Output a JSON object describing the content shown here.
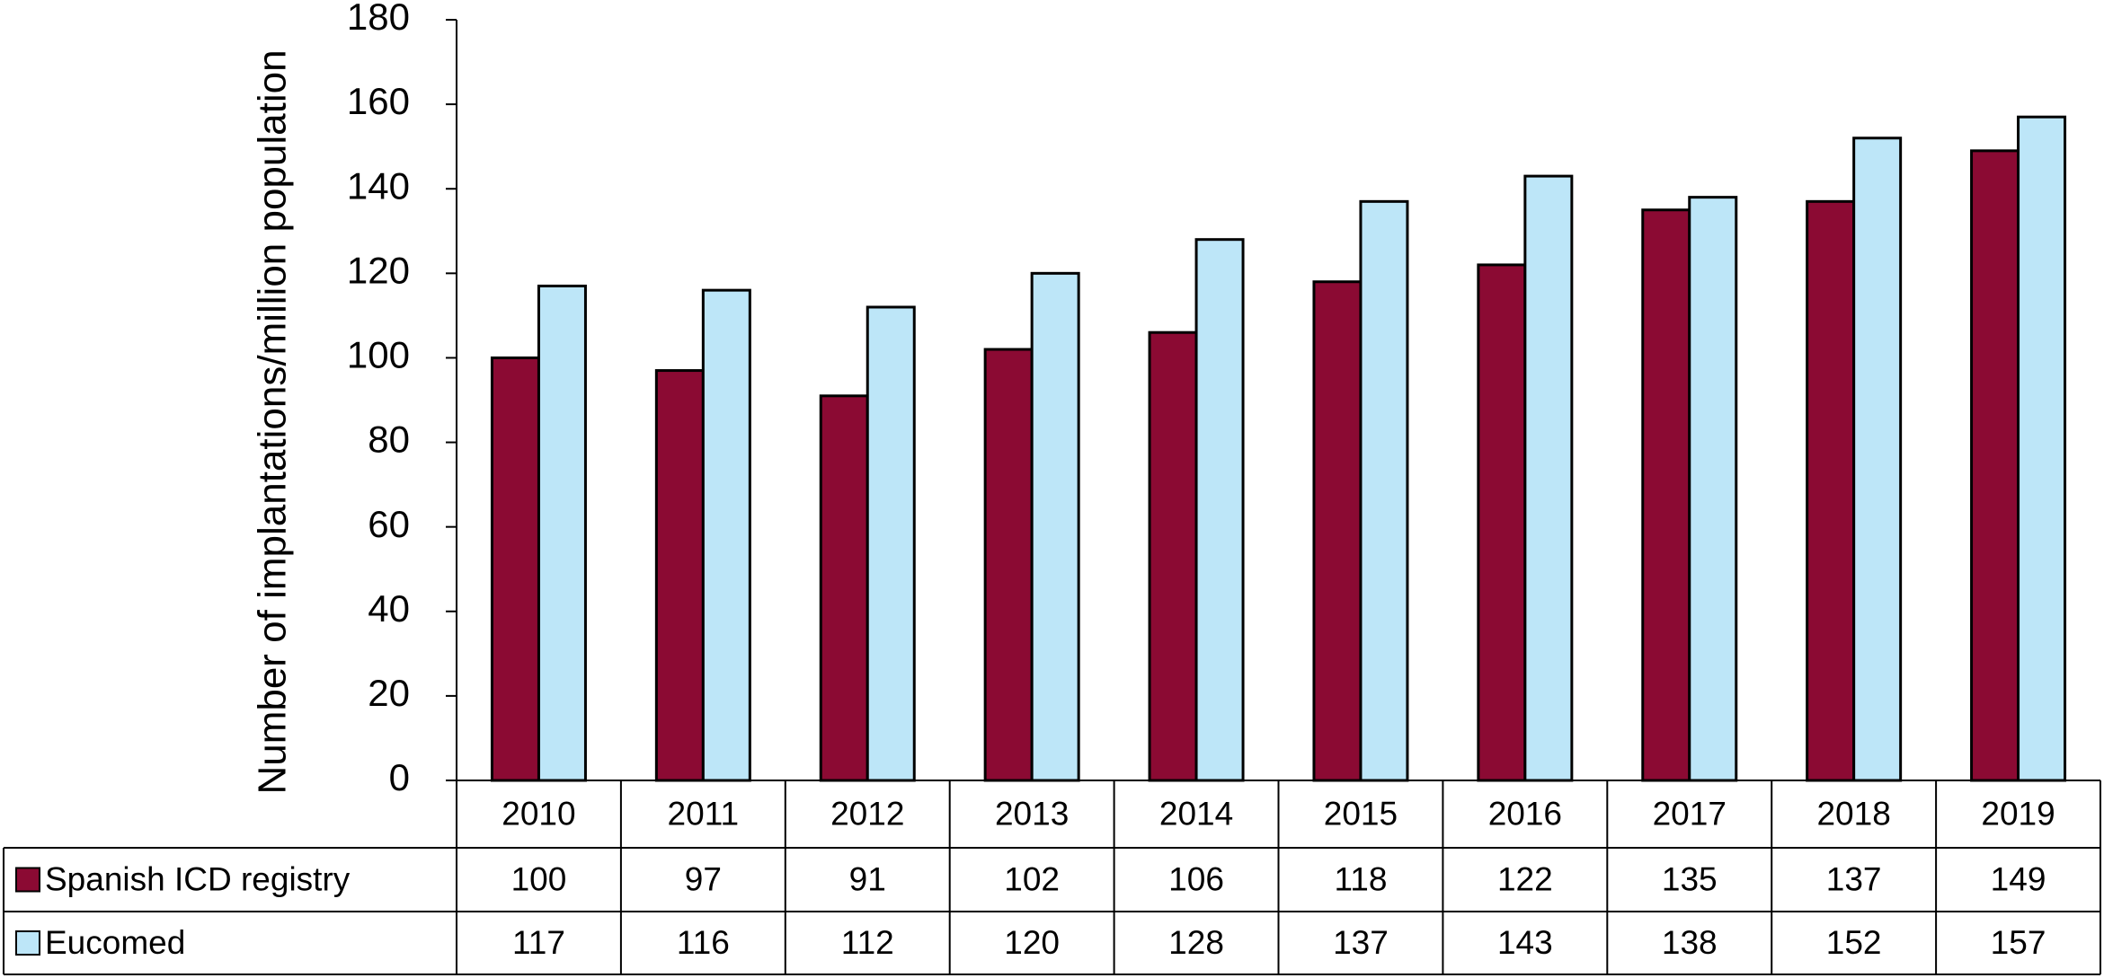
{
  "chart_data": {
    "type": "bar",
    "y_label": "Number of implantations/million population",
    "categories": [
      "2010",
      "2011",
      "2012",
      "2013",
      "2014",
      "2015",
      "2016",
      "2017",
      "2018",
      "2019"
    ],
    "series": [
      {
        "name": "Spanish ICD registry",
        "color": "#8b0a33",
        "values": [
          100,
          97,
          91,
          102,
          106,
          118,
          122,
          135,
          137,
          149
        ]
      },
      {
        "name": "Eucomed",
        "color": "#bde6f8",
        "values": [
          117,
          116,
          112,
          120,
          128,
          137,
          143,
          138,
          152,
          157
        ]
      }
    ],
    "ylim": [
      0,
      180
    ],
    "yticks": [
      0,
      20,
      40,
      60,
      80,
      100,
      120,
      140,
      160,
      180
    ],
    "grid": false
  }
}
